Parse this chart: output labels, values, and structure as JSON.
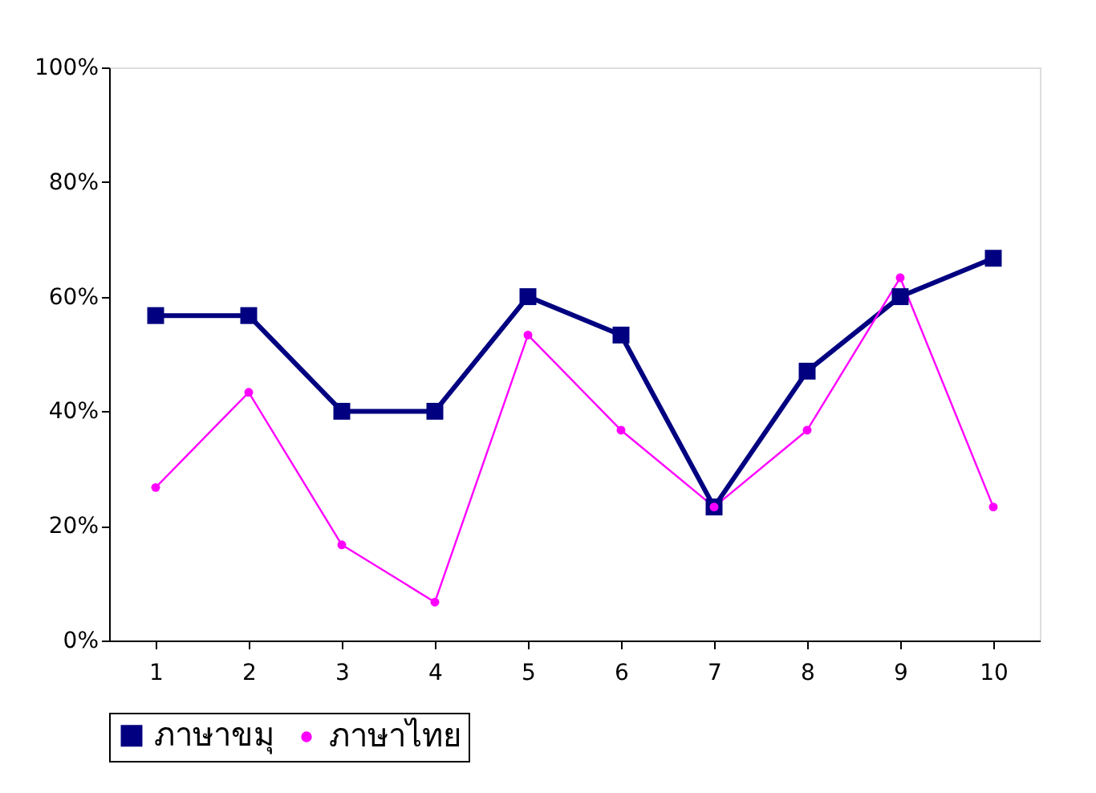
{
  "chart_data": {
    "type": "line",
    "categories": [
      "1",
      "2",
      "3",
      "4",
      "5",
      "6",
      "7",
      "8",
      "9",
      "10"
    ],
    "ylim": [
      0,
      100
    ],
    "yticks": [
      {
        "value": 0,
        "label": "0%"
      },
      {
        "value": 20,
        "label": "20%"
      },
      {
        "value": 40,
        "label": "40%"
      },
      {
        "value": 60,
        "label": "60%"
      },
      {
        "value": 80,
        "label": "80%"
      },
      {
        "value": 100,
        "label": "100%"
      }
    ],
    "grid": false,
    "legend": "bottom",
    "series": [
      {
        "name": "ภาษาขมุ",
        "color": "#000080",
        "marker": "square",
        "values": [
          56.7,
          56.7,
          40,
          40,
          60,
          53.3,
          23.3,
          47,
          60,
          66.7
        ]
      },
      {
        "name": "ภาษาไทย",
        "color": "#ff00ff",
        "marker": "circle",
        "values": [
          26.7,
          43.3,
          16.7,
          6.7,
          53.3,
          36.7,
          23.3,
          36.7,
          63.3,
          23.3
        ]
      }
    ]
  }
}
